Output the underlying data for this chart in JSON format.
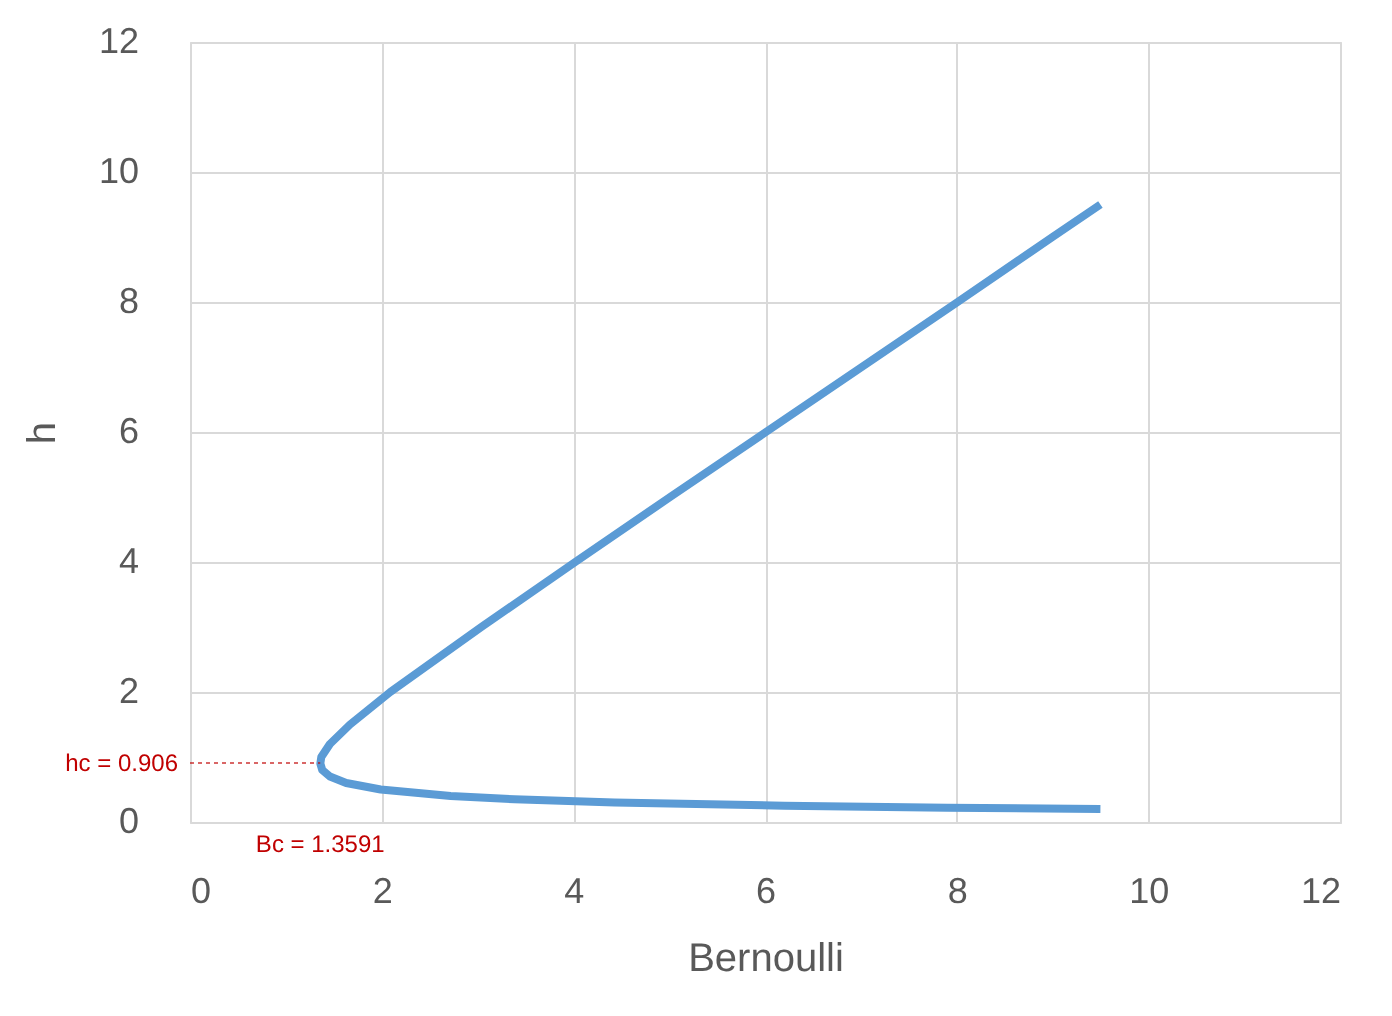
{
  "chart_data": {
    "type": "line",
    "xlabel": "Bernoulli",
    "ylabel": "h",
    "series": [
      {
        "color": "#5b9bd5",
        "x": [
          9.5,
          7.9,
          6.2,
          4.43,
          3.385,
          2.72,
          1.99,
          1.63,
          1.46,
          1.38,
          1.36,
          1.37,
          1.46,
          1.67,
          2.09,
          3.04,
          4.02,
          5.01,
          6.01,
          7.01,
          8.01,
          9.0,
          9.5
        ],
        "values": [
          0.2,
          0.22,
          0.25,
          0.3,
          0.35,
          0.4,
          0.5,
          0.6,
          0.7,
          0.8,
          0.9,
          1.0,
          1.2,
          1.5,
          2,
          3,
          4,
          5,
          6,
          7,
          8,
          9,
          9.5
        ]
      }
    ],
    "xlim": [
      0,
      12
    ],
    "xticks": [
      0,
      2,
      4,
      6,
      8,
      10,
      12
    ],
    "ylim": [
      0,
      12
    ],
    "yticks": [
      0,
      2,
      4,
      6,
      8,
      10,
      12
    ],
    "grid": true,
    "marker": "none",
    "line_style": "solid",
    "annotations": [
      {
        "text": "hc = 0.906",
        "x": 1.3591,
        "y": 0.906
      },
      {
        "text": "Bc = 1.3591",
        "x": 1.3591,
        "y": 0.906
      }
    ]
  }
}
